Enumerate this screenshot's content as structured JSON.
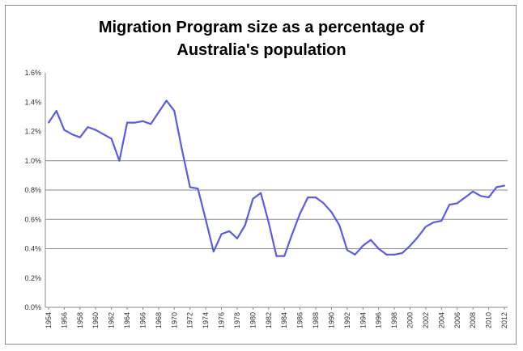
{
  "chart_data": {
    "type": "line",
    "title_lines": [
      "Migration Program size as a percentage of",
      "Australia's population"
    ],
    "xlabel": "",
    "ylabel": "",
    "ylim": [
      0,
      1.6
    ],
    "y_ticks": [
      0,
      0.2,
      0.4,
      0.6,
      0.8,
      1.0,
      1.2,
      1.4,
      1.6
    ],
    "y_tick_labels": [
      "0.0%",
      "0.2%",
      "0.4%",
      "0.6%",
      "0.8%",
      "1.0%",
      "1.2%",
      "1.4%",
      "1.6%"
    ],
    "x_tick_labels": [
      "1954",
      "1956",
      "1958",
      "1960",
      "1962",
      "1964",
      "1966",
      "1968",
      "1970",
      "1972",
      "1974",
      "1976",
      "1978",
      "1980",
      "1982",
      "1984",
      "1986",
      "1988",
      "1990",
      "1992",
      "1994",
      "1996",
      "1998",
      "2000",
      "2002",
      "2004",
      "2006",
      "2008",
      "2010",
      "2012"
    ],
    "grid": true,
    "legend": "none",
    "series_color": "#5b5be6",
    "x": [
      1954,
      1955,
      1956,
      1957,
      1958,
      1959,
      1960,
      1961,
      1962,
      1963,
      1964,
      1965,
      1966,
      1967,
      1968,
      1969,
      1970,
      1971,
      1972,
      1973,
      1974,
      1975,
      1976,
      1977,
      1978,
      1979,
      1980,
      1981,
      1982,
      1983,
      1984,
      1985,
      1986,
      1987,
      1988,
      1989,
      1990,
      1991,
      1992,
      1993,
      1994,
      1995,
      1996,
      1997,
      1998,
      1999,
      2000,
      2001,
      2002,
      2003,
      2004,
      2005,
      2006,
      2007,
      2008,
      2009,
      2010,
      2011,
      2012
    ],
    "values": [
      1.26,
      1.34,
      1.21,
      1.18,
      1.16,
      1.23,
      1.21,
      1.18,
      1.15,
      1.0,
      1.26,
      1.26,
      1.27,
      1.25,
      1.33,
      1.41,
      1.34,
      1.07,
      0.82,
      0.81,
      0.6,
      0.38,
      0.5,
      0.52,
      0.47,
      0.56,
      0.74,
      0.78,
      0.58,
      0.35,
      0.35,
      0.5,
      0.64,
      0.75,
      0.75,
      0.71,
      0.65,
      0.56,
      0.39,
      0.36,
      0.42,
      0.46,
      0.4,
      0.36,
      0.36,
      0.37,
      0.42,
      0.48,
      0.55,
      0.58,
      0.59,
      0.7,
      0.71,
      0.75,
      0.79,
      0.76,
      0.75,
      0.82,
      0.83
    ]
  }
}
